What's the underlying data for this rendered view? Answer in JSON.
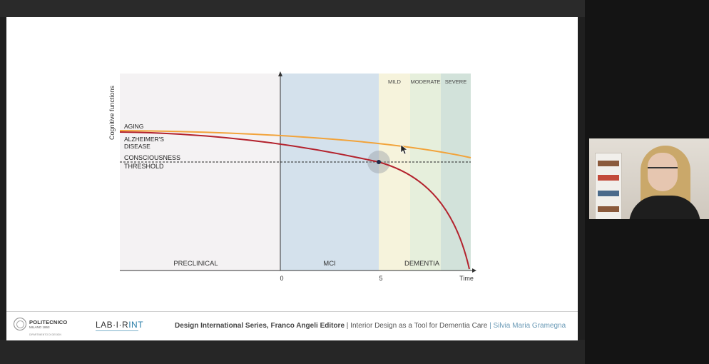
{
  "chart_data": {
    "type": "line",
    "ylabel": "Cognitive functions",
    "xlabel": "Time",
    "x_ticks": [
      "0",
      "5"
    ],
    "phases": [
      {
        "name": "PRECLINICAL"
      },
      {
        "name": "MCI"
      },
      {
        "name": "DEMENTIA"
      }
    ],
    "dementia_stages": [
      "MILD",
      "MODERATE",
      "SEVERE"
    ],
    "series": [
      {
        "name": "AGING",
        "color": "#f2a33a"
      },
      {
        "name": "ALZHEIMER'S DISEASE",
        "name_lines": [
          "ALZHEIMER'S",
          "DISEASE"
        ],
        "color": "#b3222d"
      }
    ],
    "threshold": {
      "label_lines": [
        "CONSCIOUSNESS",
        "THRESHOLD"
      ],
      "style": "dashed"
    },
    "highlight": {
      "x": 5,
      "description": "intersection of Alzheimer's curve with consciousness threshold"
    },
    "colors": {
      "preclinical": "#f4f2f3",
      "mci": "#d4e1ec",
      "mild": "#f6f3dc",
      "moderate": "#e6efdc",
      "severe": "#d2e2da"
    }
  },
  "footer": {
    "logo_left_name": "POLITECNICO",
    "logo_left_city": "MILANO 1863",
    "logo_left_dept": "DIPARTIMENTO DI DESIGN",
    "logo_right": "LAB·I·R",
    "logo_right_accent": "INT",
    "series_title": "Design International Series, Franco Angeli Editore",
    "sep1": " | ",
    "book_title": "Interior Design as a Tool for Dementia Care",
    "sep2": " | ",
    "author": "Silvia Maria Gramegna"
  },
  "webcam": {
    "icon": "participant-video"
  }
}
